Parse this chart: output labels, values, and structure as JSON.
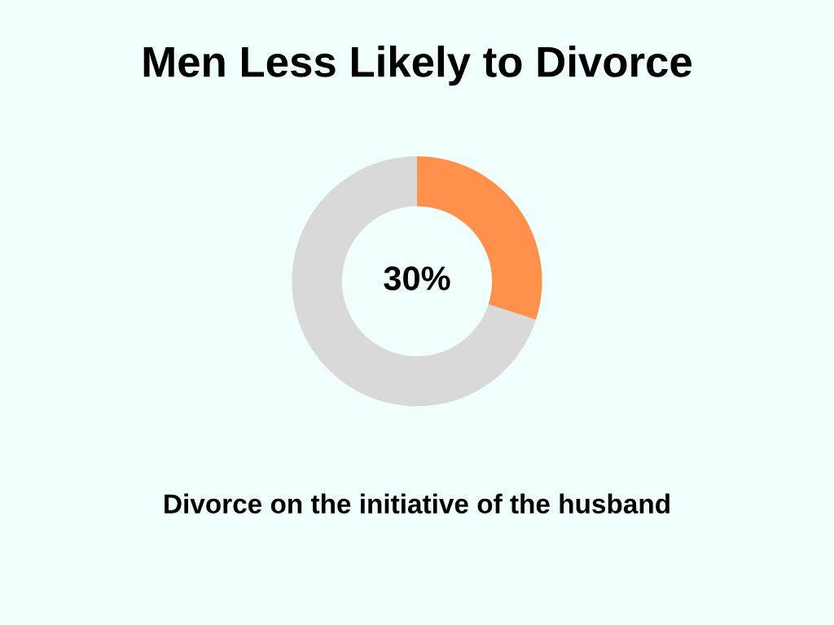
{
  "chart_data": {
    "type": "donut",
    "title": "Men Less Likely to Divorce",
    "categories": [
      null,
      null
    ],
    "values": [
      30,
      70
    ],
    "colors": [
      "#ff914d",
      "#d9d9d9"
    ],
    "value_labels": [
      "30%",
      null
    ],
    "annotations": [
      "Divorce on the initiative of the husband"
    ]
  }
}
